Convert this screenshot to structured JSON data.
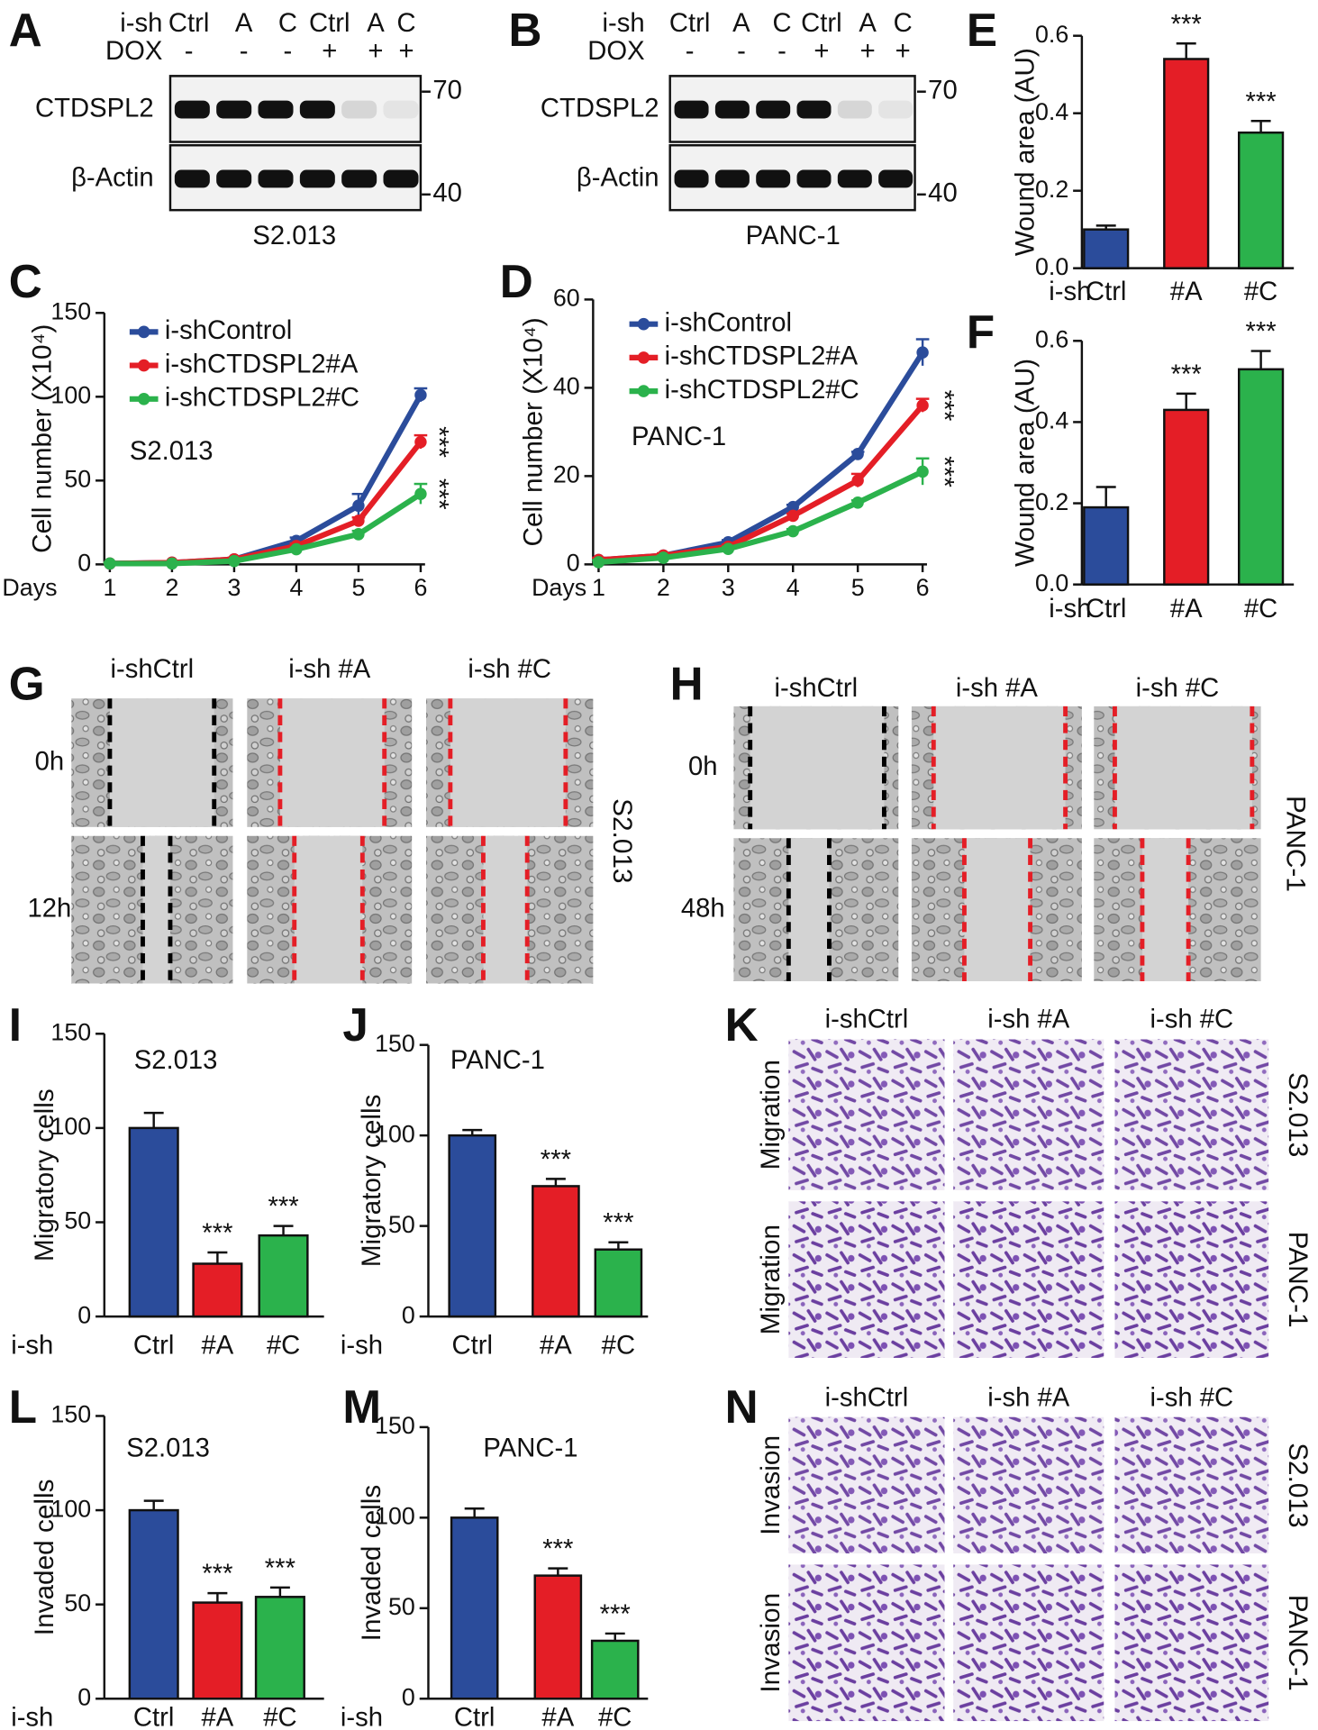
{
  "chart_data": [
    {
      "type": "bar",
      "panel": "E",
      "ylabel": "Wound area (AU)",
      "xlabel": "i-sh",
      "categories": [
        "Ctrl",
        "#A",
        "#C"
      ],
      "values": [
        0.1,
        0.54,
        0.35
      ],
      "errors": [
        0.01,
        0.04,
        0.03
      ],
      "colors": [
        "#2b4c9b",
        "#e41e26",
        "#2bb24c"
      ],
      "significance": [
        null,
        "***",
        "***"
      ],
      "ylim": [
        0,
        0.6
      ],
      "yticks": [
        {
          "value": 0,
          "label": "0.0"
        },
        0.2,
        0.4,
        0.6
      ]
    },
    {
      "type": "bar",
      "panel": "F",
      "ylabel": "Wound area (AU)",
      "xlabel": "i-sh",
      "categories": [
        "Ctrl",
        "#A",
        "#C"
      ],
      "values": [
        0.19,
        0.43,
        0.53
      ],
      "errors": [
        0.05,
        0.04,
        0.045
      ],
      "colors": [
        "#2b4c9b",
        "#e41e26",
        "#2bb24c"
      ],
      "significance": [
        null,
        "***",
        "***"
      ],
      "ylim": [
        0,
        0.6
      ],
      "yticks": [
        {
          "value": 0,
          "label": "0.0"
        },
        0.2,
        0.4,
        0.6
      ]
    },
    {
      "type": "line",
      "panel": "C",
      "ylabel": "Cell number (X10⁴)",
      "xlabel": "Days",
      "annotation": "S2.013",
      "x": [
        1,
        2,
        3,
        4,
        5,
        6
      ],
      "xlim": [
        1,
        6
      ],
      "xticks": [
        1,
        2,
        3,
        4,
        5,
        6
      ],
      "ylim": [
        0,
        150
      ],
      "yticks": [
        0,
        50,
        100,
        150
      ],
      "series": [
        {
          "name": "i-shControl",
          "color": "#2b4c9b",
          "values": [
            0.5,
            1,
            3,
            14,
            35,
            101
          ],
          "errors": [
            0.5,
            0.5,
            1,
            2,
            7,
            4
          ],
          "significance": null
        },
        {
          "name": "i-shCTDSPL2#A",
          "color": "#e41e26",
          "values": [
            0.5,
            1,
            3,
            11,
            26,
            73
          ],
          "errors": [
            0.5,
            0.5,
            1,
            1.5,
            2,
            4
          ],
          "significance": "***"
        },
        {
          "name": "i-shCTDSPL2#C",
          "color": "#2bb24c",
          "values": [
            0.5,
            0.5,
            2,
            9,
            18,
            42
          ],
          "errors": [
            0.5,
            0.5,
            0.5,
            1,
            2,
            6
          ],
          "significance": "***"
        }
      ]
    },
    {
      "type": "line",
      "panel": "D",
      "ylabel": "Cell number (X10⁴)",
      "xlabel": "Days",
      "annotation": "PANC-1",
      "x": [
        1,
        2,
        3,
        4,
        5,
        6
      ],
      "xlim": [
        1,
        6
      ],
      "xticks": [
        1,
        2,
        3,
        4,
        5,
        6
      ],
      "ylim": [
        0,
        60
      ],
      "yticks": [
        0,
        20,
        40,
        60
      ],
      "series": [
        {
          "name": "i-shControl",
          "color": "#2b4c9b",
          "values": [
            1,
            2,
            5,
            13,
            25,
            48
          ],
          "errors": [
            0.5,
            0.5,
            0.5,
            0.5,
            0.5,
            3
          ],
          "significance": null
        },
        {
          "name": "i-shCTDSPL2#A",
          "color": "#e41e26",
          "values": [
            1,
            2,
            4,
            11,
            19,
            36
          ],
          "errors": [
            0.5,
            0.5,
            0.5,
            0.5,
            1.5,
            1.5
          ],
          "significance": "***"
        },
        {
          "name": "i-shCTDSPL2#C",
          "color": "#2bb24c",
          "values": [
            0.5,
            1.5,
            3.5,
            7.5,
            14,
            21
          ],
          "errors": [
            0.5,
            0.5,
            0.5,
            0.5,
            0.5,
            3
          ],
          "significance": "***"
        }
      ]
    },
    {
      "type": "bar",
      "panel": "I",
      "title": "S2.013",
      "ylabel": "Migratory cells",
      "xlabel": "i-sh",
      "categories": [
        "Ctrl",
        "#A",
        "#C"
      ],
      "values": [
        100,
        28,
        43
      ],
      "errors": [
        8,
        6,
        5
      ],
      "colors": [
        "#2b4c9b",
        "#e41e26",
        "#2bb24c"
      ],
      "significance": [
        null,
        "***",
        "***"
      ],
      "ylim": [
        0,
        150
      ],
      "yticks": [
        0,
        50,
        100,
        150
      ]
    },
    {
      "type": "bar",
      "panel": "J",
      "title": "PANC-1",
      "ylabel": "Migratory cells",
      "xlabel": "i-sh",
      "categories": [
        "Ctrl",
        "#A",
        "#C"
      ],
      "values": [
        100,
        72,
        37
      ],
      "errors": [
        3,
        4,
        4
      ],
      "colors": [
        "#2b4c9b",
        "#e41e26",
        "#2bb24c"
      ],
      "significance": [
        null,
        "***",
        "***"
      ],
      "ylim": [
        0,
        150
      ],
      "yticks": [
        0,
        50,
        100,
        150
      ]
    },
    {
      "type": "bar",
      "panel": "L",
      "title": "S2.013",
      "ylabel": "Invaded cells",
      "xlabel": "i-sh",
      "categories": [
        "Ctrl",
        "#A",
        "#C"
      ],
      "values": [
        100,
        51,
        54
      ],
      "errors": [
        5,
        5,
        5
      ],
      "colors": [
        "#2b4c9b",
        "#e41e26",
        "#2bb24c"
      ],
      "significance": [
        null,
        "***",
        "***"
      ],
      "ylim": [
        0,
        150
      ],
      "yticks": [
        0,
        50,
        100,
        150
      ]
    },
    {
      "type": "bar",
      "panel": "M",
      "title": "PANC-1",
      "ylabel": "Invaded cells",
      "xlabel": "i-sh",
      "categories": [
        "Ctrl",
        "#A",
        "#C"
      ],
      "values": [
        100,
        68,
        32
      ],
      "errors": [
        5,
        4,
        4
      ],
      "colors": [
        "#2b4c9b",
        "#e41e26",
        "#2bb24c"
      ],
      "significance": [
        null,
        "***",
        "***"
      ],
      "ylim": [
        0,
        150
      ],
      "yticks": [
        0,
        50,
        100,
        150
      ]
    }
  ],
  "blots": [
    {
      "panel": "A",
      "row_label": "i-sh",
      "lanes": [
        "Ctrl",
        "A",
        "C",
        "Ctrl",
        "A",
        "C"
      ],
      "treatment_label": "DOX",
      "treatment": [
        "-",
        "-",
        "-",
        "+",
        "+",
        "+"
      ],
      "proteins": [
        "CTDSPL2",
        "β-Actin"
      ],
      "markers": [
        "70",
        "40"
      ],
      "cell_line": "S2.013"
    },
    {
      "panel": "B",
      "row_label": "i-sh",
      "lanes": [
        "Ctrl",
        "A",
        "C",
        "Ctrl",
        "A",
        "C"
      ],
      "treatment_label": "DOX",
      "treatment": [
        "-",
        "-",
        "-",
        "+",
        "+",
        "+"
      ],
      "proteins": [
        "CTDSPL2",
        "β-Actin"
      ],
      "markers": [
        "70",
        "40"
      ],
      "cell_line": "PANC-1"
    }
  ],
  "micrographs": [
    {
      "panel": "G",
      "columns": [
        "i-shCtrl",
        "i-sh #A",
        "i-sh #C"
      ],
      "rows": [
        "0h",
        "12h"
      ],
      "cell_lines": [
        "S2.013"
      ]
    },
    {
      "panel": "H",
      "columns": [
        "i-shCtrl",
        "i-sh #A",
        "i-sh #C"
      ],
      "rows": [
        "0h",
        "48h"
      ],
      "cell_lines": [
        "PANC-1"
      ]
    },
    {
      "panel": "K",
      "columns": [
        "i-shCtrl",
        "i-sh #A",
        "i-sh #C"
      ],
      "rows": [
        "Migration",
        "Migration"
      ],
      "cell_lines": [
        "S2.013",
        "PANC-1"
      ]
    },
    {
      "panel": "N",
      "columns": [
        "i-shCtrl",
        "i-sh #A",
        "i-sh #C"
      ],
      "rows": [
        "Invasion",
        "Invasion"
      ],
      "cell_lines": [
        "S2.013",
        "PANC-1"
      ]
    }
  ]
}
